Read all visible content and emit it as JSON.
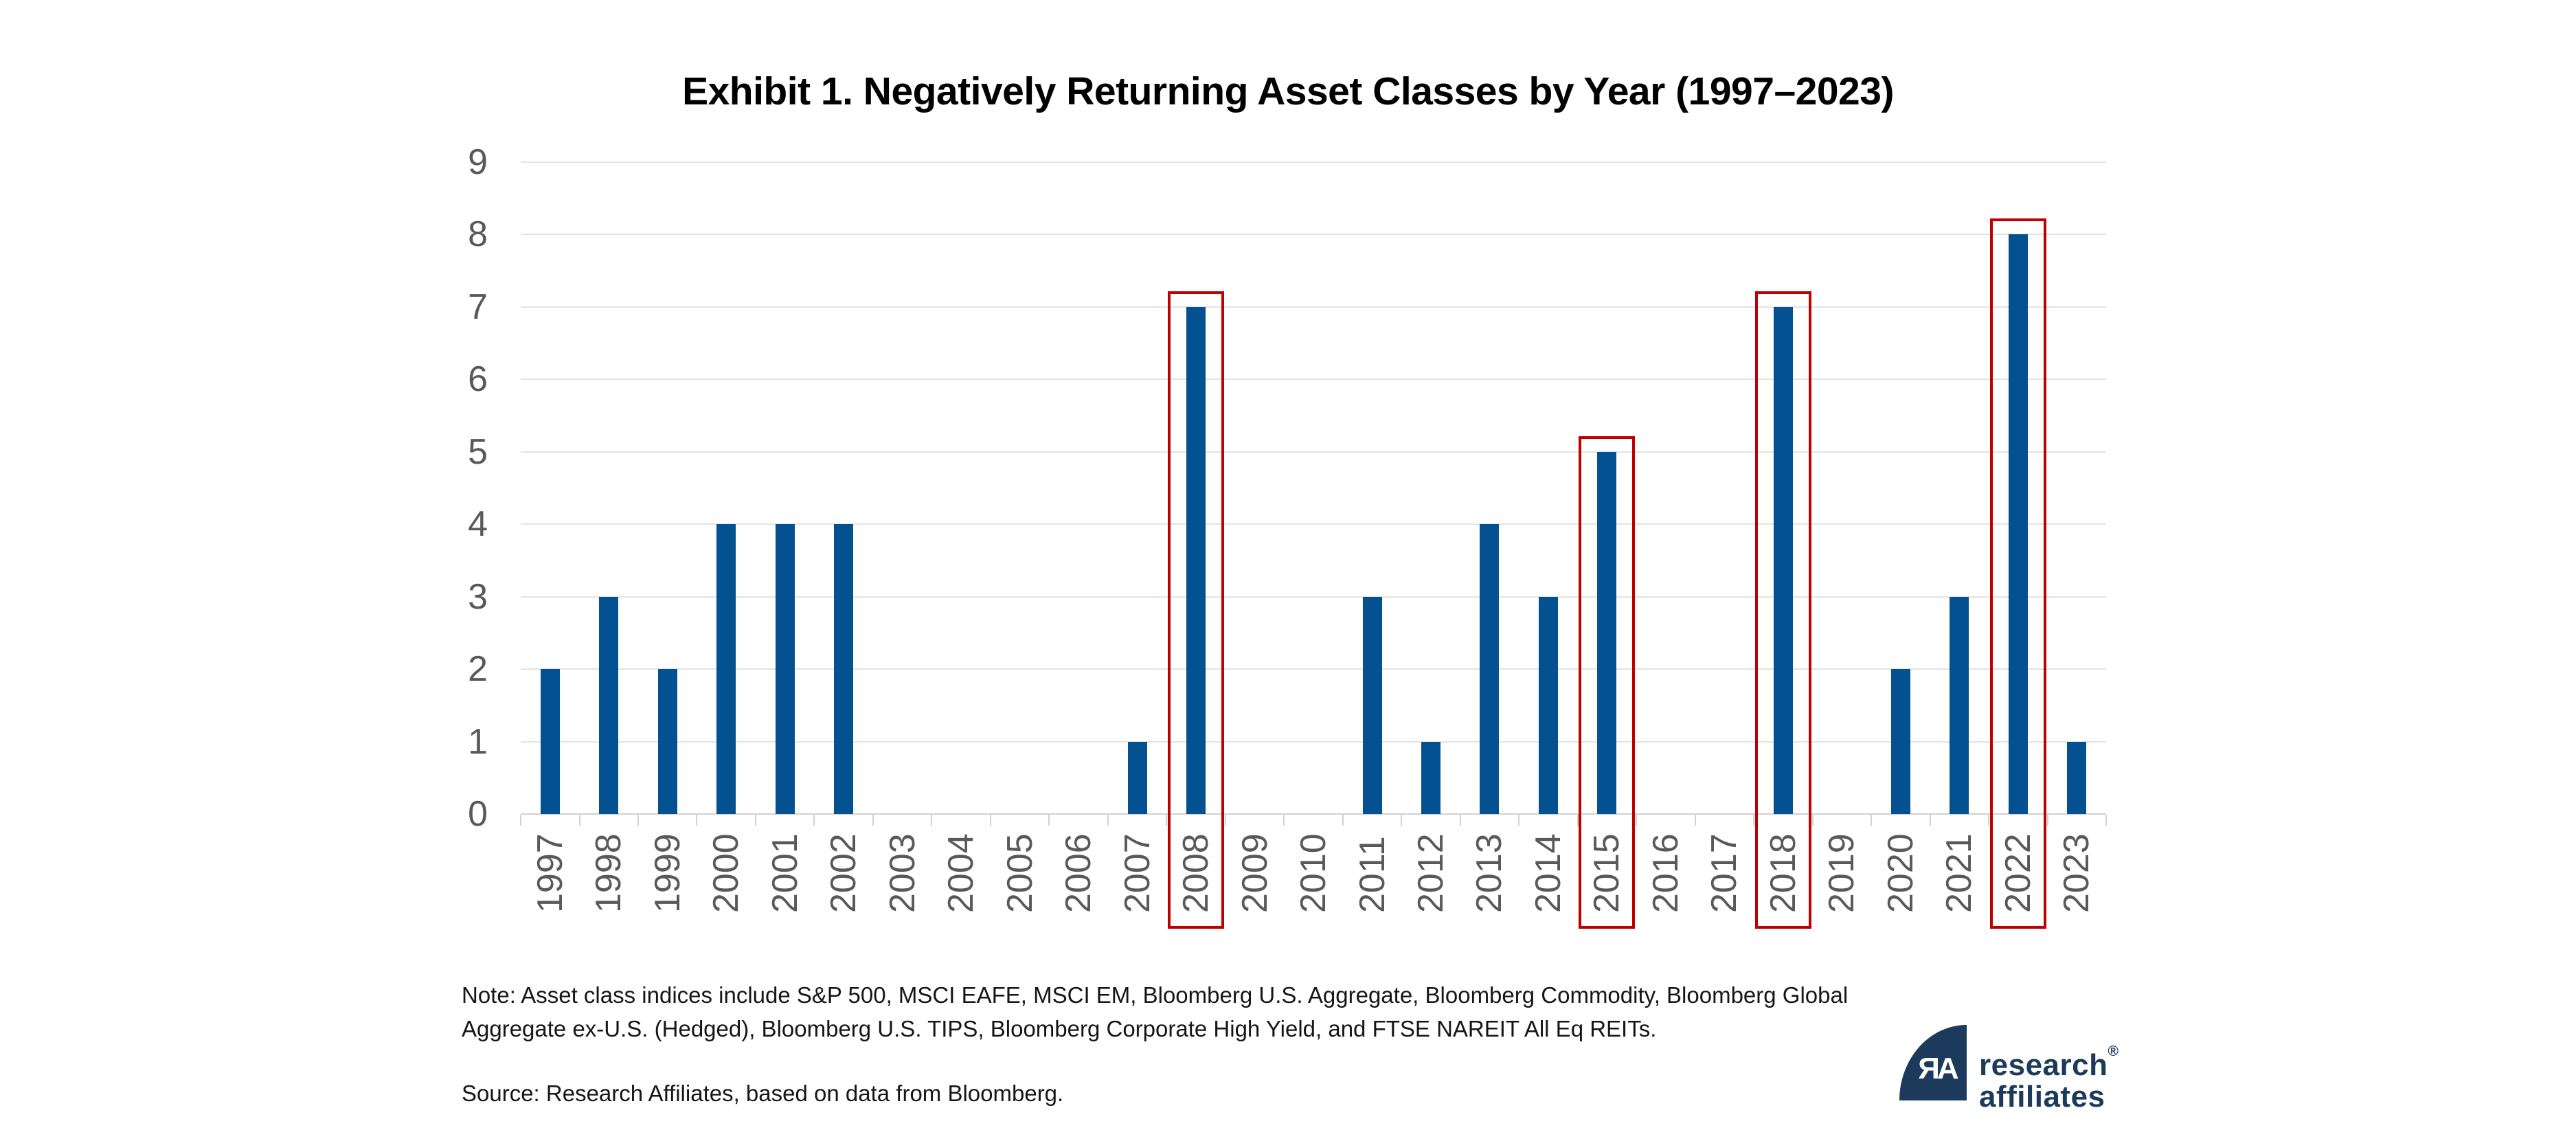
{
  "chart_data": {
    "type": "bar",
    "title": "Exhibit 1. Negatively Returning Asset Classes by Year (1997–2023)",
    "categories": [
      "1997",
      "1998",
      "1999",
      "2000",
      "2001",
      "2002",
      "2003",
      "2004",
      "2005",
      "2006",
      "2007",
      "2008",
      "2009",
      "2010",
      "2011",
      "2012",
      "2013",
      "2014",
      "2015",
      "2016",
      "2017",
      "2018",
      "2019",
      "2020",
      "2021",
      "2022",
      "2023"
    ],
    "values": [
      2,
      3,
      2,
      4,
      4,
      4,
      0,
      0,
      0,
      0,
      1,
      7,
      0,
      0,
      3,
      1,
      4,
      3,
      5,
      0,
      0,
      7,
      0,
      2,
      3,
      8,
      1
    ],
    "highlighted_categories": [
      "2008",
      "2015",
      "2018",
      "2022"
    ],
    "xlabel": "",
    "ylabel": "",
    "ylim": [
      0,
      9
    ],
    "yticks": [
      0,
      1,
      2,
      3,
      4,
      5,
      6,
      7,
      8,
      9
    ],
    "grid": true,
    "legend": "none",
    "bar_color": "#045191",
    "highlight_box_color": "#c00000",
    "axis_label_color": "#595959"
  },
  "footer": {
    "note": "Note: Asset class indices include S&P 500, MSCI EAFE, MSCI EM, Bloomberg U.S. Aggregate, Bloomberg Commodity, Bloomberg Global Aggregate ex-U.S. (Hedged), Bloomberg U.S. TIPS, Bloomberg Corporate High Yield, and FTSE NAREIT All Eq REITs.",
    "source": "Source: Research Affiliates, based on data from Bloomberg."
  },
  "logo": {
    "monogram": "ЯA",
    "line1": "research",
    "line2": "affiliates",
    "registered_mark": "®",
    "color": "#1b3a5c"
  }
}
